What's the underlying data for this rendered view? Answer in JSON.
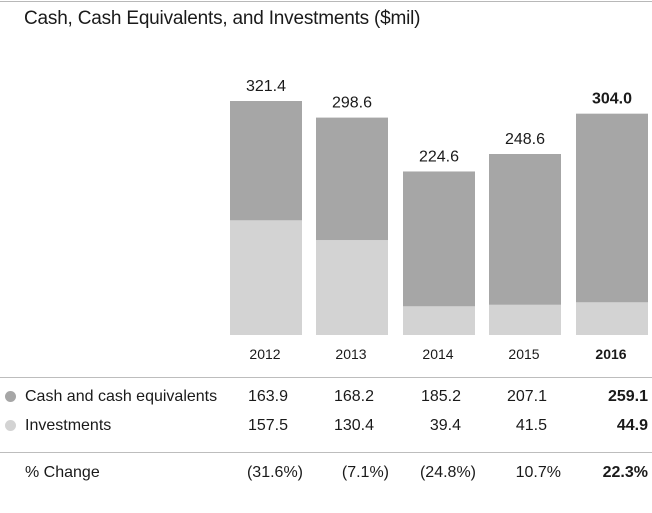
{
  "title": "Cash, Cash Equivalents, and Investments ($mil)",
  "colors": {
    "cash": "#a6a6a6",
    "investments": "#d3d3d3"
  },
  "chart_data": {
    "type": "bar",
    "stacked": true,
    "title": "Cash, Cash Equivalents, and Investments ($mil)",
    "categories": [
      "2012",
      "2013",
      "2014",
      "2015",
      "2016"
    ],
    "series": [
      {
        "name": "Investments",
        "values": [
          157.5,
          130.4,
          39.4,
          41.5,
          44.9
        ]
      },
      {
        "name": "Cash and cash equivalents",
        "values": [
          163.9,
          168.2,
          185.2,
          207.1,
          259.1
        ]
      }
    ],
    "totals": [
      "321.4",
      "298.6",
      "224.6",
      "248.6",
      "304.0"
    ],
    "ylim": [
      0,
      321.4
    ]
  },
  "table": {
    "rows": [
      {
        "label": "Cash and cash equivalents",
        "values": [
          "163.9",
          "168.2",
          "185.2",
          "207.1",
          "259.1"
        ]
      },
      {
        "label": "Investments",
        "values": [
          "157.5",
          "130.4",
          "39.4",
          "41.5",
          "44.9"
        ]
      },
      {
        "label": "% Change",
        "values": [
          "(31.6%)",
          "(7.1%)",
          "(24.8%)",
          "10.7%",
          "22.3%"
        ]
      }
    ]
  }
}
